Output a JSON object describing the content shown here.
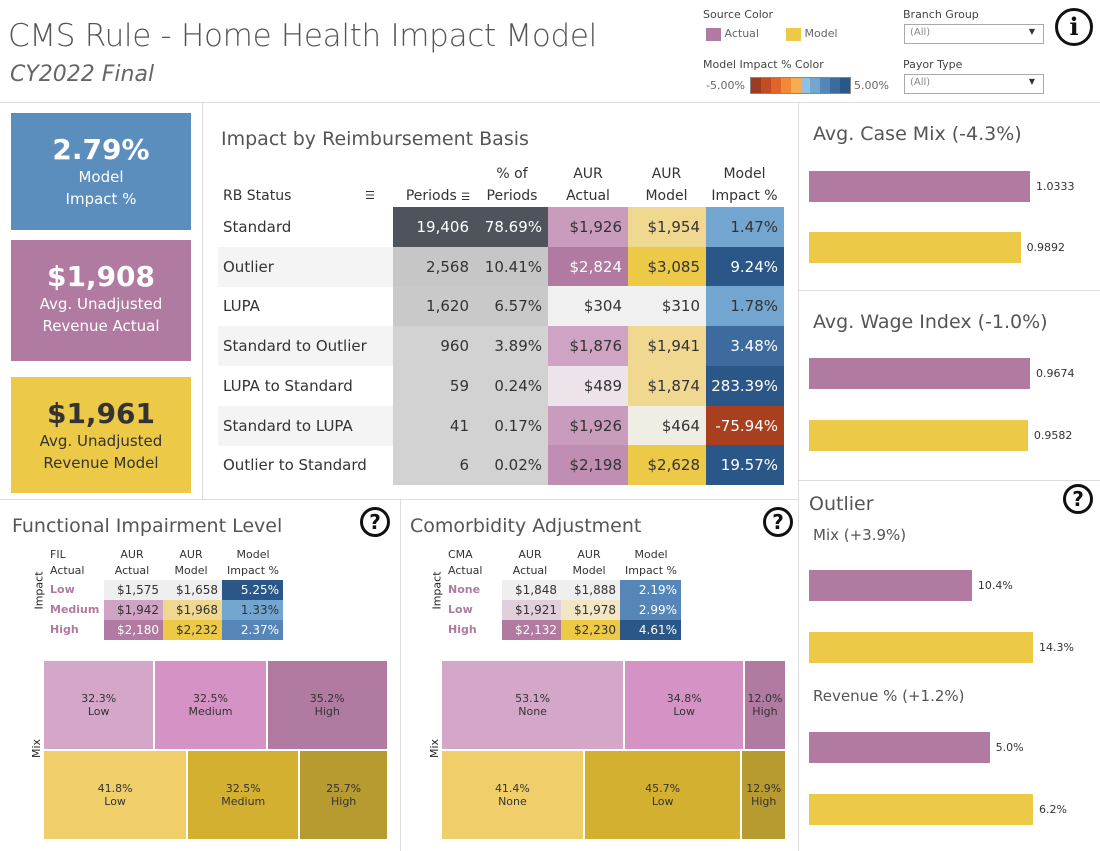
{
  "header": {
    "title": "CMS Rule - Home Health Impact Model",
    "subtitle": "CY2022 Final"
  },
  "legend": {
    "source_label": "Source Color",
    "actual": "Actual",
    "model": "Model",
    "impact_label": "Model Impact % Color",
    "min": "-5.00%",
    "max": "5.00%",
    "colors": {
      "actual": "#b07aa1",
      "model": "#edc948"
    },
    "scale": [
      "#9c3b22",
      "#c04e25",
      "#e0652a",
      "#f08a38",
      "#f9ab54",
      "#8fc1e0",
      "#72a5cf",
      "#5686b8",
      "#3e6b9e",
      "#2a5787"
    ]
  },
  "filters": {
    "branch_label": "Branch Group",
    "branch_value": "(All)",
    "payor_label": "Payor Type",
    "payor_value": "(All)"
  },
  "kpis": [
    {
      "value": "2.79%",
      "l1": "Model",
      "l2": "Impact %",
      "color": "#5b8dbd"
    },
    {
      "value": "$1,908",
      "l1": "Avg. Unadjusted",
      "l2": "Revenue Actual",
      "color": "#b07aa1"
    },
    {
      "value": "$1,961",
      "l1": "Avg. Unadjusted",
      "l2": "Revenue Model",
      "color": "#edc948"
    }
  ],
  "rb": {
    "title": "Impact by Reimbursement Basis",
    "headers": {
      "status": "RB Status",
      "periods": "Periods",
      "pct1": "% of",
      "pct2": "Periods",
      "aa1": "AUR",
      "aa2": "Actual",
      "am1": "AUR",
      "am2": "Model",
      "mi1": "Model",
      "mi2": "Impact %"
    },
    "rows": [
      {
        "status": "Standard",
        "periods": "19,406",
        "pct": "78.69%",
        "aur_actual": "$1,926",
        "aur_model": "$1,954",
        "impact": "1.47%",
        "c": [
          "#4e535c",
          "#4e535c",
          "#c99bbd",
          "#f0d890",
          "#72a5cf"
        ],
        "w": [
          1,
          1,
          0,
          0,
          0
        ]
      },
      {
        "status": "Outlier",
        "periods": "2,568",
        "pct": "10.41%",
        "aur_actual": "$2,824",
        "aur_model": "$3,085",
        "impact": "9.24%",
        "c": [
          "#c6c6c6",
          "#c6c6c6",
          "#b07aa1",
          "#edc948",
          "#2a5787"
        ],
        "w": [
          0,
          0,
          1,
          0,
          1
        ]
      },
      {
        "status": "LUPA",
        "periods": "1,620",
        "pct": "6.57%",
        "aur_actual": "$304",
        "aur_model": "$310",
        "impact": "1.78%",
        "c": [
          "#c9c9c9",
          "#c9c9c9",
          "#f0f0f0",
          "#f0f0f0",
          "#72a5cf"
        ],
        "w": [
          0,
          0,
          0,
          0,
          0
        ]
      },
      {
        "status": "Standard to Outlier",
        "periods": "960",
        "pct": "3.89%",
        "aur_actual": "$1,876",
        "aur_model": "$1,941",
        "impact": "3.48%",
        "c": [
          "#d2d2d2",
          "#d2d2d2",
          "#cfa3c3",
          "#f0d890",
          "#3e6b9e"
        ],
        "w": [
          0,
          0,
          0,
          0,
          1
        ]
      },
      {
        "status": "LUPA to Standard",
        "periods": "59",
        "pct": "0.24%",
        "aur_actual": "$489",
        "aur_model": "$1,874",
        "impact": "283.39%",
        "c": [
          "#d2d2d2",
          "#d2d2d2",
          "#ece4ea",
          "#f0d890",
          "#2a5787"
        ],
        "w": [
          0,
          0,
          0,
          0,
          1
        ]
      },
      {
        "status": "Standard to LUPA",
        "periods": "41",
        "pct": "0.17%",
        "aur_actual": "$1,926",
        "aur_model": "$464",
        "impact": "-75.94%",
        "c": [
          "#d2d2d2",
          "#d2d2d2",
          "#c99bbd",
          "#f0ede4",
          "#a8401f"
        ],
        "w": [
          0,
          0,
          0,
          0,
          1
        ]
      },
      {
        "status": "Outlier to Standard",
        "periods": "6",
        "pct": "0.02%",
        "aur_actual": "$2,198",
        "aur_model": "$2,628",
        "impact": "19.57%",
        "c": [
          "#d2d2d2",
          "#d2d2d2",
          "#bf8eb2",
          "#edc948",
          "#2a5787"
        ],
        "w": [
          0,
          0,
          0,
          0,
          1
        ]
      }
    ]
  },
  "right": {
    "case_mix": {
      "title": "Avg. Case Mix (-4.3%)",
      "values": [
        1.0333,
        0.9892
      ],
      "labels": [
        "1.0333",
        "0.9892"
      ]
    },
    "wage": {
      "title": "Avg. Wage Index (-1.0%)",
      "values": [
        0.9674,
        0.9582
      ],
      "labels": [
        "0.9674",
        "0.9582"
      ]
    },
    "outlier": {
      "title": "Outlier",
      "mix_title": "Mix (+3.9%)",
      "mix_values": [
        10.4,
        14.3
      ],
      "mix_labels": [
        "10.4%",
        "14.3%"
      ],
      "rev_title": "Revenue % (+1.2%)",
      "rev_values": [
        5.0,
        6.2
      ],
      "rev_labels": [
        "5.0%",
        "6.2%"
      ]
    }
  },
  "fil": {
    "title": "Functional Impairment Level",
    "h0a": "FIL",
    "h0b": "Actual",
    "h1a": "AUR",
    "h1b": "Actual",
    "h2a": "AUR",
    "h2b": "Model",
    "h3a": "Model",
    "h3b": "Impact %",
    "axis": "Impact",
    "mix_axis": "Mix",
    "rows": [
      {
        "label": "Low",
        "a": "$1,575",
        "m": "$1,658",
        "i": "5.25%",
        "c": [
          "#efefef",
          "#efefef",
          "#2a5787"
        ],
        "w": [
          0,
          0,
          1
        ]
      },
      {
        "label": "Medium",
        "a": "$1,942",
        "m": "$1,968",
        "i": "1.33%",
        "c": [
          "#cfa3c3",
          "#f0d890",
          "#72a5cf"
        ],
        "w": [
          0,
          0,
          0
        ]
      },
      {
        "label": "High",
        "a": "$2,180",
        "m": "$2,232",
        "i": "2.37%",
        "c": [
          "#b07aa1",
          "#edc948",
          "#5686b8"
        ],
        "w": [
          1,
          0,
          1
        ]
      }
    ],
    "mix_actual": [
      {
        "pct": 32.3,
        "label": "32.3%",
        "name": "Low",
        "c": "#d4a6c8"
      },
      {
        "pct": 32.5,
        "label": "32.5%",
        "name": "Medium",
        "c": "#d492c5"
      },
      {
        "pct": 35.2,
        "label": "35.2%",
        "name": "High",
        "c": "#b07aa1"
      }
    ],
    "mix_model": [
      {
        "pct": 41.8,
        "label": "41.8%",
        "name": "Low",
        "c": "#f0cf6a"
      },
      {
        "pct": 32.5,
        "label": "32.5%",
        "name": "Medium",
        "c": "#d4b030"
      },
      {
        "pct": 25.7,
        "label": "25.7%",
        "name": "High",
        "c": "#b89b30"
      }
    ]
  },
  "cma": {
    "title": "Comorbidity Adjustment",
    "h0a": "CMA",
    "h0b": "Actual",
    "h1a": "AUR",
    "h1b": "Actual",
    "h2a": "AUR",
    "h2b": "Model",
    "h3a": "Model",
    "h3b": "Impact %",
    "axis": "Impact",
    "mix_axis": "Mix",
    "rows": [
      {
        "label": "None",
        "a": "$1,848",
        "m": "$1,888",
        "i": "2.19%",
        "c": [
          "#efefef",
          "#efefef",
          "#5686b8"
        ],
        "w": [
          0,
          0,
          1
        ]
      },
      {
        "label": "Low",
        "a": "$1,921",
        "m": "$1,978",
        "i": "2.99%",
        "c": [
          "#e2cfdc",
          "#f2e6c4",
          "#5686b8"
        ],
        "w": [
          0,
          0,
          1
        ]
      },
      {
        "label": "High",
        "a": "$2,132",
        "m": "$2,230",
        "i": "4.61%",
        "c": [
          "#b07aa1",
          "#edc948",
          "#2a5787"
        ],
        "w": [
          1,
          0,
          1
        ]
      }
    ],
    "mix_actual": [
      {
        "pct": 53.1,
        "label": "53.1%",
        "name": "None",
        "c": "#d4a6c8"
      },
      {
        "pct": 34.8,
        "label": "34.8%",
        "name": "Low",
        "c": "#d492c5"
      },
      {
        "pct": 12.0,
        "label": "12.0%",
        "name": "High",
        "c": "#b07aa1"
      }
    ],
    "mix_model": [
      {
        "pct": 41.4,
        "label": "41.4%",
        "name": "None",
        "c": "#f0cf6a"
      },
      {
        "pct": 45.7,
        "label": "45.7%",
        "name": "Low",
        "c": "#d4b030"
      },
      {
        "pct": 12.9,
        "label": "12.9%",
        "name": "High",
        "c": "#b89b30"
      }
    ]
  }
}
